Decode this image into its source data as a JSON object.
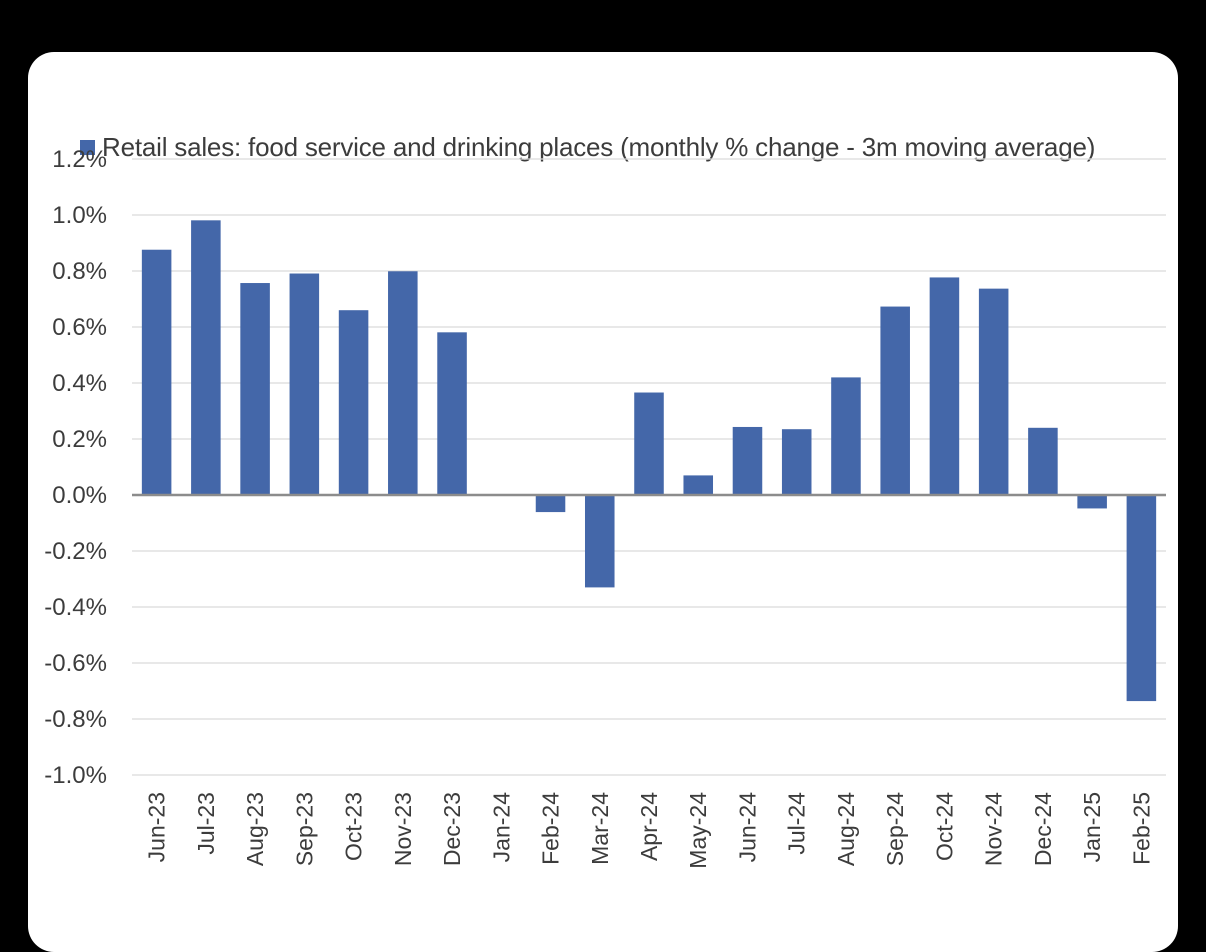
{
  "chart_data": {
    "type": "bar",
    "title": "",
    "xlabel": "",
    "ylabel": "",
    "ylim": [
      -1.0,
      1.2
    ],
    "y_ticks": [
      1.2,
      1.0,
      0.8,
      0.6,
      0.4,
      0.2,
      0.0,
      -0.2,
      -0.4,
      -0.6,
      -0.8,
      -1.0
    ],
    "y_tick_labels": [
      "1.2%",
      "1.0%",
      "0.8%",
      "0.6%",
      "0.4%",
      "0.2%",
      "0.0%",
      "-0.2%",
      "-0.4%",
      "-0.6%",
      "-0.8%",
      "-1.0%"
    ],
    "grid": true,
    "legend_placement": "top",
    "categories": [
      "Jun-23",
      "Jul-23",
      "Aug-23",
      "Sep-23",
      "Oct-23",
      "Nov-23",
      "Dec-23",
      "Jan-24",
      "Feb-24",
      "Mar-24",
      "Apr-24",
      "May-24",
      "Jun-24",
      "Jul-24",
      "Aug-24",
      "Sep-24",
      "Oct-24",
      "Nov-24",
      "Dec-24",
      "Jan-25",
      "Feb-25"
    ],
    "series": [
      {
        "name": "Retail sales: food service and drinking places (monthly % change - 3m moving average)",
        "color": "#4467a9",
        "values": [
          0.876,
          0.981,
          0.757,
          0.791,
          0.66,
          0.799,
          0.581,
          0.0,
          -0.061,
          -0.33,
          0.366,
          0.07,
          0.243,
          0.235,
          0.42,
          0.673,
          0.777,
          0.737,
          0.24,
          -0.048,
          -0.736
        ]
      }
    ]
  },
  "colors": {
    "bar": "#4467a9",
    "gridline": "#d9d9d9",
    "zero_axis": "#8c8c8c",
    "text": "#3c3c3c"
  }
}
